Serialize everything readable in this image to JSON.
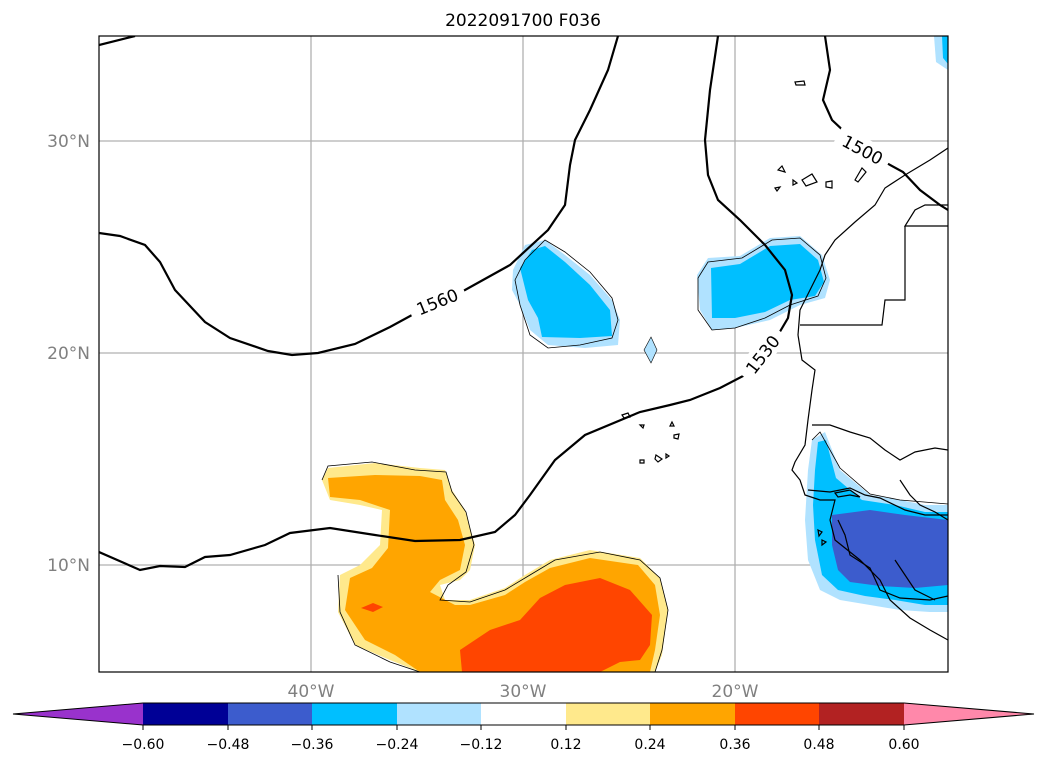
{
  "title": "2022091700 F036",
  "lon_labels": [
    "40°W",
    "30°W",
    "20°W"
  ],
  "lat_labels": [
    "30°N",
    "20°N",
    "10°N"
  ],
  "contour_labels": [
    "1560",
    "1530",
    "1500"
  ],
  "colorbar": {
    "tick_labels": [
      "−0.60",
      "−0.48",
      "−0.36",
      "−0.24",
      "−0.12",
      "0.12",
      "0.24",
      "0.36",
      "0.48",
      "0.60"
    ],
    "under_color": "#9932cc",
    "over_color": "#ff88aa",
    "colors": [
      "#000096",
      "#3c5ccd",
      "#00bfff",
      "#b0e2ff",
      "#ffffff",
      "#ffe98c",
      "#ffa500",
      "#ff4500",
      "#b22222"
    ]
  },
  "colors": {
    "light_blue": "#b0e2ff",
    "blue": "#00bfff",
    "royal_blue": "#3c5ccd",
    "yellow": "#ffe98c",
    "orange": "#ffa500",
    "red_orange": "#ff4500",
    "grid": "#b0b0b0"
  }
}
